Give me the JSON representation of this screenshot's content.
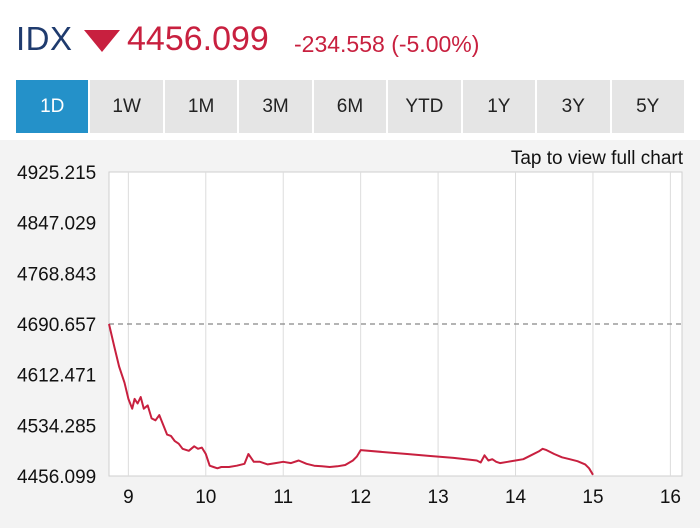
{
  "header": {
    "ticker": "IDX",
    "price": "4456.099",
    "change": "-234.558 (-5.00%)",
    "direction_icon": "down-triangle-icon",
    "up_down_color": "#c8203f"
  },
  "tabs": [
    {
      "label": "1D",
      "active": true
    },
    {
      "label": "1W",
      "active": false
    },
    {
      "label": "1M",
      "active": false
    },
    {
      "label": "3M",
      "active": false
    },
    {
      "label": "6M",
      "active": false
    },
    {
      "label": "YTD",
      "active": false
    },
    {
      "label": "1Y",
      "active": false
    },
    {
      "label": "3Y",
      "active": false
    },
    {
      "label": "5Y",
      "active": false
    }
  ],
  "colors": {
    "accent": "#2491c9",
    "line": "#c8203f",
    "reference": "#888888"
  },
  "chart": {
    "tap_label": "Tap to view full chart"
  },
  "chart_data": {
    "type": "line",
    "x_ticks": [
      9,
      10,
      11,
      12,
      13,
      14,
      15,
      16
    ],
    "x_tick_labels": [
      "9",
      "10",
      "11",
      "12",
      "13",
      "14",
      "15",
      "16"
    ],
    "xlim": [
      8.75,
      16.15
    ],
    "y_ticks": [
      4925.215,
      4847.029,
      4768.843,
      4690.657,
      4612.471,
      4534.285,
      4456.099
    ],
    "y_tick_labels": [
      "4925.215",
      "4847.029",
      "4768.843",
      "4690.657",
      "4612.471",
      "4534.285",
      "4456.099"
    ],
    "ylim": [
      4456.099,
      4925.215
    ],
    "reference_line": 4690.657,
    "grid": true,
    "series": [
      {
        "x": [
          8.75,
          8.82,
          8.88,
          8.95,
          9.0,
          9.05,
          9.08,
          9.12,
          9.16,
          9.2,
          9.25,
          9.3,
          9.35,
          9.4,
          9.45,
          9.5,
          9.55,
          9.6,
          9.65,
          9.7,
          9.78,
          9.85,
          9.9,
          9.95,
          10.0,
          10.05,
          10.1,
          10.15,
          10.2,
          10.3,
          10.4,
          10.5,
          10.55,
          10.58,
          10.62,
          10.7,
          10.8,
          10.9,
          11.0,
          11.1,
          11.2,
          11.3,
          11.4,
          11.5,
          11.6,
          11.7,
          11.8,
          11.9,
          11.95,
          12.0,
          12.3,
          12.6,
          12.9,
          13.2,
          13.5,
          13.55,
          13.6,
          13.65,
          13.7,
          13.75,
          13.8,
          13.9,
          14.0,
          14.1,
          14.2,
          14.3,
          14.35,
          14.4,
          14.5,
          14.6,
          14.7,
          14.8,
          14.9,
          14.95,
          15.0
        ],
        "y": [
          4690.657,
          4655,
          4625,
          4600,
          4575,
          4560,
          4575,
          4568,
          4578,
          4560,
          4565,
          4545,
          4542,
          4550,
          4535,
          4520,
          4518,
          4510,
          4506,
          4498,
          4495,
          4502,
          4498,
          4500,
          4490,
          4472,
          4470,
          4468,
          4470,
          4470,
          4472,
          4475,
          4490,
          4485,
          4478,
          4478,
          4474,
          4476,
          4478,
          4476,
          4480,
          4475,
          4472,
          4471,
          4470,
          4471,
          4473,
          4480,
          4486,
          4496,
          4493,
          4490,
          4487,
          4484,
          4480,
          4477,
          4488,
          4480,
          4482,
          4478,
          4476,
          4478,
          4480,
          4482,
          4488,
          4494,
          4498,
          4496,
          4490,
          4485,
          4482,
          4479,
          4474,
          4468,
          4458
        ]
      }
    ]
  }
}
